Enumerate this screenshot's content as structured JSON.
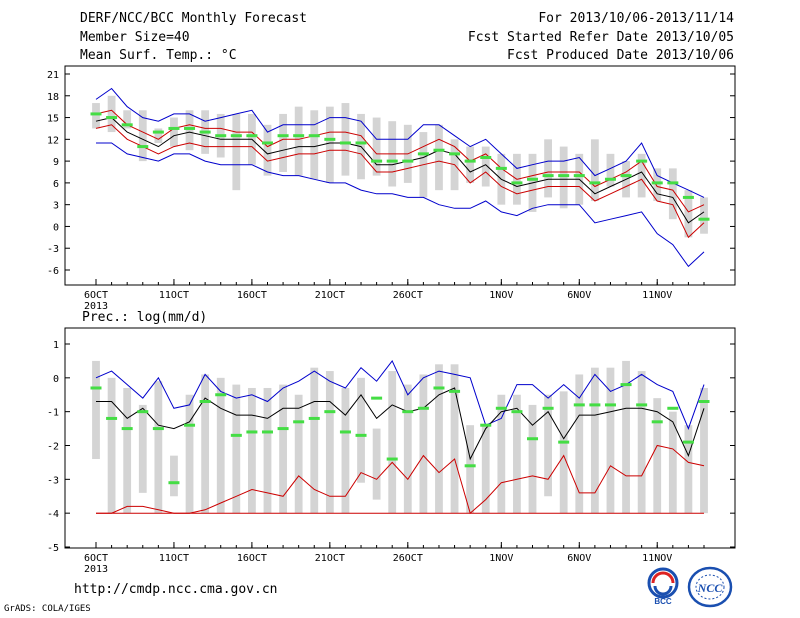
{
  "header": {
    "title": "DERF/NCC/BCC Monthly Forecast",
    "member_size": "Member Size=40",
    "variable": "Mean Surf. Temp.: °C",
    "period": "For 2013/10/06-2013/11/14",
    "started": "Fcst Started Refer Date 2013/10/05",
    "produced": "Fcst Produced Date 2013/10/06"
  },
  "footer": {
    "url": "http://cmdp.ncc.cma.gov.cn",
    "grads": "GrADS: COLA/IGES"
  },
  "logos": {
    "bcc": "BCC",
    "ncc": "NCC"
  },
  "colors": {
    "envelope": "#0000cc",
    "spread": "#cc0000",
    "mean": "#000000",
    "obs": "#44dd44",
    "box": "#d4d4d4"
  },
  "chart_data": [
    {
      "type": "line",
      "title": "Mean Surf. Temp.: °C",
      "ylim": [
        -7,
        22
      ],
      "yticks": [
        21,
        18,
        15,
        12,
        9,
        6,
        3,
        0,
        -3,
        -6
      ],
      "x_tick_labels": [
        {
          "i": 0,
          "label": "6OCT",
          "sub": "2013"
        },
        {
          "i": 5,
          "label": "11OCT"
        },
        {
          "i": 10,
          "label": "16OCT"
        },
        {
          "i": 15,
          "label": "21OCT"
        },
        {
          "i": 20,
          "label": "26OCT"
        },
        {
          "i": 26,
          "label": "1NOV"
        },
        {
          "i": 31,
          "label": "6NOV"
        },
        {
          "i": 36,
          "label": "11NOV"
        }
      ],
      "n_days": 40,
      "series": [
        {
          "key": "max",
          "values": [
            17.5,
            19,
            16.5,
            15,
            14.5,
            15.5,
            15.5,
            14.5,
            15,
            15.5,
            16,
            13,
            14,
            14,
            14,
            15,
            15,
            14.5,
            12,
            12,
            12,
            14,
            14,
            12.5,
            11,
            12,
            10,
            8,
            8.5,
            9,
            9,
            9.5,
            7,
            8,
            9,
            11.5,
            7,
            6,
            5,
            4
          ]
        },
        {
          "key": "upper",
          "values": [
            15.5,
            16,
            14,
            13,
            12,
            13.5,
            14,
            13.5,
            13.5,
            13,
            13,
            11,
            12,
            12,
            12.5,
            13,
            13,
            12.5,
            10,
            10,
            10,
            11,
            12,
            11,
            9,
            10,
            8,
            6.5,
            7,
            7.5,
            7.5,
            7.5,
            5.5,
            6.5,
            7.5,
            9,
            5.5,
            5,
            2,
            3
          ]
        },
        {
          "key": "mean",
          "values": [
            14.5,
            15,
            13,
            12,
            11,
            12.5,
            13,
            12.5,
            12,
            12,
            12,
            10,
            10.5,
            11,
            11,
            11.5,
            11.5,
            11,
            8.5,
            8.5,
            9,
            9.5,
            10.5,
            10,
            7.5,
            8.5,
            6.5,
            5.5,
            6,
            6.5,
            6.5,
            6.5,
            4.5,
            5.5,
            6.5,
            7.5,
            4.5,
            4,
            0.5,
            2
          ]
        },
        {
          "key": "lower",
          "values": [
            13.5,
            14,
            12,
            11,
            10,
            11,
            11.5,
            11,
            11,
            11,
            11,
            9,
            9.5,
            10,
            10,
            10.5,
            10.5,
            10,
            7.5,
            7.5,
            8,
            8.5,
            9,
            8.5,
            6,
            7.5,
            5.5,
            4.5,
            5,
            5.5,
            5.5,
            5.5,
            3.5,
            4.5,
            5.5,
            6.5,
            3.5,
            3,
            -1.5,
            0.5
          ]
        },
        {
          "key": "min",
          "values": [
            11.5,
            11.5,
            10,
            9.5,
            9,
            10,
            10,
            9,
            8.5,
            8.5,
            8.5,
            7.5,
            7,
            7,
            6.5,
            6,
            6,
            5,
            4.5,
            4.5,
            4,
            4,
            3,
            2.5,
            2.5,
            3.5,
            2,
            1.5,
            2.5,
            3,
            3,
            3,
            0.5,
            1,
            1.5,
            2,
            -1,
            -2.5,
            -5.5,
            -3.5
          ]
        },
        {
          "key": "obs",
          "values": [
            15.5,
            15,
            14,
            11,
            13,
            13.5,
            13.5,
            13,
            12.5,
            12.5,
            12.5,
            11.5,
            12.5,
            12.5,
            12.5,
            12,
            11.5,
            11.5,
            9,
            9,
            9,
            10,
            10.5,
            10,
            9,
            9.5,
            8,
            6,
            6.5,
            7,
            7,
            7,
            6,
            6.5,
            7,
            9,
            6,
            6,
            4,
            1
          ]
        }
      ],
      "boxes": [
        [
          13.5,
          17
        ],
        [
          13,
          18
        ],
        [
          13.5,
          16
        ],
        [
          9,
          16
        ],
        [
          11.5,
          13.5
        ],
        [
          11,
          15
        ],
        [
          10.5,
          16
        ],
        [
          10,
          16
        ],
        [
          9.5,
          15.5
        ],
        [
          5,
          15.5
        ],
        [
          8.5,
          15.5
        ],
        [
          7,
          14
        ],
        [
          7.5,
          15.5
        ],
        [
          7,
          16.5
        ],
        [
          6.5,
          16
        ],
        [
          6,
          16.5
        ],
        [
          7,
          17
        ],
        [
          6.5,
          15.5
        ],
        [
          7,
          15
        ],
        [
          5.5,
          14.5
        ],
        [
          6,
          14
        ],
        [
          4,
          13
        ],
        [
          5,
          14
        ],
        [
          5,
          12
        ],
        [
          6,
          11
        ],
        [
          5.5,
          11
        ],
        [
          3,
          10
        ],
        [
          3,
          10
        ],
        [
          2,
          10
        ],
        [
          4,
          12
        ],
        [
          2.5,
          11
        ],
        [
          3,
          10
        ],
        [
          3.5,
          12
        ],
        [
          5.5,
          10
        ],
        [
          4,
          9
        ],
        [
          4,
          10
        ],
        [
          3.5,
          8
        ],
        [
          1,
          8
        ],
        [
          -1.5,
          5
        ],
        [
          -1,
          4
        ]
      ]
    },
    {
      "type": "line",
      "title": "Prec.: log(mm/d)",
      "ylim": [
        -5,
        1.2
      ],
      "yticks": [
        1,
        0,
        -1,
        -2,
        -3,
        -4,
        -5
      ],
      "x_tick_labels": [
        {
          "i": 0,
          "label": "6OCT",
          "sub": "2013"
        },
        {
          "i": 5,
          "label": "11OCT"
        },
        {
          "i": 10,
          "label": "16OCT"
        },
        {
          "i": 15,
          "label": "21OCT"
        },
        {
          "i": 20,
          "label": "26OCT"
        },
        {
          "i": 26,
          "label": "1NOV"
        },
        {
          "i": 31,
          "label": "6NOV"
        },
        {
          "i": 36,
          "label": "11NOV"
        }
      ],
      "n_days": 40,
      "series": [
        {
          "key": "max",
          "values": [
            0,
            0.2,
            -0.2,
            -0.6,
            0,
            -0.9,
            -0.8,
            0.1,
            -0.4,
            -0.6,
            -0.5,
            -0.7,
            -0.3,
            -0.1,
            0.2,
            -0.1,
            -0.3,
            0.3,
            -0.1,
            0.5,
            -0.5,
            0,
            0.2,
            0.1,
            0,
            -1.4,
            -1.2,
            -0.2,
            -0.2,
            -0.6,
            -0.2,
            -0.6,
            0.1,
            -0.4,
            -0.2,
            0.1,
            -0.2,
            -0.4,
            -1.5,
            -0.2
          ]
        },
        {
          "key": "mean",
          "values": [
            -0.7,
            -0.7,
            -1.2,
            -0.9,
            -1.4,
            -1.5,
            -1.3,
            -0.6,
            -0.9,
            -1.1,
            -1.1,
            -1.2,
            -0.9,
            -0.9,
            -0.7,
            -0.7,
            -1.1,
            -0.5,
            -1.2,
            -0.8,
            -1,
            -0.9,
            -0.5,
            -0.3,
            -2.4,
            -1.5,
            -1,
            -0.9,
            -1.4,
            -1,
            -1.8,
            -1.1,
            -1.1,
            -1,
            -0.9,
            -0.9,
            -1,
            -1.3,
            -2.3,
            -0.9
          ]
        },
        {
          "key": "lower",
          "values": [
            -4,
            -4,
            -3.8,
            -3.8,
            -3.9,
            -4,
            -4,
            -3.9,
            -3.7,
            -3.5,
            -3.3,
            -3.4,
            -3.5,
            -2.9,
            -3.3,
            -3.5,
            -3.5,
            -2.8,
            -3,
            -2.5,
            -3,
            -2.3,
            -2.8,
            -2.4,
            -4,
            -3.6,
            -3.1,
            -3,
            -2.9,
            -3,
            -2.3,
            -3.4,
            -3.4,
            -2.6,
            -2.9,
            -2.9,
            -2,
            -2.1,
            -2.5,
            -2.6
          ]
        },
        {
          "key": "floor",
          "values": [
            -4,
            -4,
            -4,
            -4,
            -4,
            -4,
            -4,
            -4,
            -4,
            -4,
            -4,
            -4,
            -4,
            -4,
            -4,
            -4,
            -4,
            -4,
            -4,
            -4,
            -4,
            -4,
            -4,
            -4,
            -4,
            -4,
            -4,
            -4,
            -4,
            -4,
            -4,
            -4,
            -4,
            -4,
            -4,
            -4,
            -4,
            -4,
            -4,
            -4
          ]
        },
        {
          "key": "obs",
          "values": [
            -0.3,
            -1.2,
            -1.5,
            -1,
            -1.5,
            -3.1,
            -1.4,
            -0.7,
            -0.5,
            -1.7,
            -1.6,
            -1.6,
            -1.5,
            -1.3,
            -1.2,
            -1,
            -1.6,
            -1.7,
            -0.6,
            -2.4,
            -1,
            -0.9,
            -0.3,
            -0.4,
            -2.6,
            -1.4,
            -0.9,
            -1,
            -1.8,
            -0.9,
            -1.9,
            -0.8,
            -0.8,
            -0.8,
            -0.2,
            -0.8,
            -1.3,
            -0.9,
            -1.9,
            -0.7
          ]
        }
      ],
      "boxes": [
        [
          -2.4,
          0.5
        ],
        [
          -4,
          0
        ],
        [
          -4,
          -0.3
        ],
        [
          -3.4,
          -0.8
        ],
        [
          -4,
          -0.1
        ],
        [
          -3.5,
          -2.3
        ],
        [
          -4,
          -0.5
        ],
        [
          -4,
          0.1
        ],
        [
          -4,
          0
        ],
        [
          -4,
          -0.2
        ],
        [
          -4,
          -0.3
        ],
        [
          -4,
          -0.3
        ],
        [
          -4,
          -0.2
        ],
        [
          -4,
          -0.5
        ],
        [
          -4,
          0.3
        ],
        [
          -4,
          0.2
        ],
        [
          -4,
          -0.3
        ],
        [
          -3.1,
          0
        ],
        [
          -3.6,
          -1.5
        ],
        [
          -4,
          0.2
        ],
        [
          -4,
          -0.2
        ],
        [
          -4,
          0.1
        ],
        [
          -4,
          0.4
        ],
        [
          -4,
          0.4
        ],
        [
          -4,
          -1.4
        ],
        [
          -4,
          -1.4
        ],
        [
          -4,
          -0.5
        ],
        [
          -4,
          -0.5
        ],
        [
          -4,
          -0.8
        ],
        [
          -3.5,
          -0.5
        ],
        [
          -4,
          -0.4
        ],
        [
          -4,
          0.1
        ],
        [
          -4,
          0.3
        ],
        [
          -4,
          0.3
        ],
        [
          -4,
          0.5
        ],
        [
          -4,
          0.2
        ],
        [
          -4,
          -0.6
        ],
        [
          -4,
          -1
        ],
        [
          -4,
          -1.4
        ],
        [
          -4,
          -0.3
        ]
      ]
    }
  ]
}
